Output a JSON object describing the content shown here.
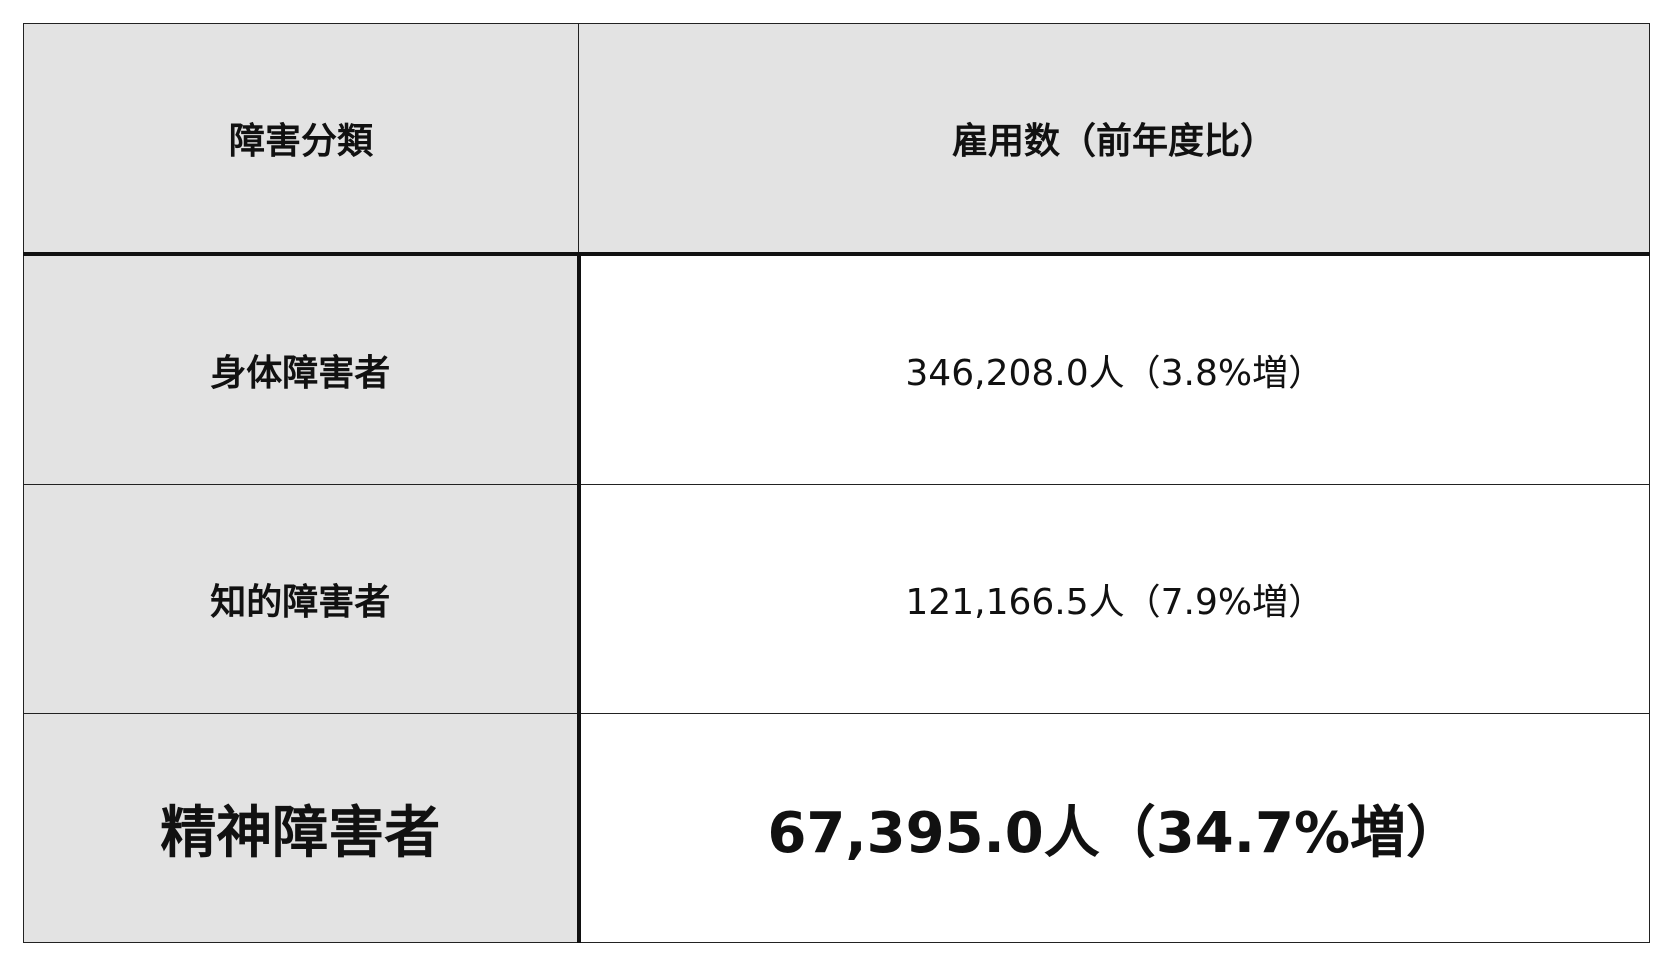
{
  "table": {
    "headers": [
      "障害分類",
      "雇用数（前年度比）"
    ],
    "rows": [
      {
        "category": "身体障害者",
        "value": "346,208.0人（3.8%増）"
      },
      {
        "category": "知的障害者",
        "value": "121,166.5人（7.9%増）"
      },
      {
        "category": "精神障害者",
        "value": "67,395.0人（34.7%増）"
      }
    ],
    "header_bg": "#e3e3e3"
  }
}
